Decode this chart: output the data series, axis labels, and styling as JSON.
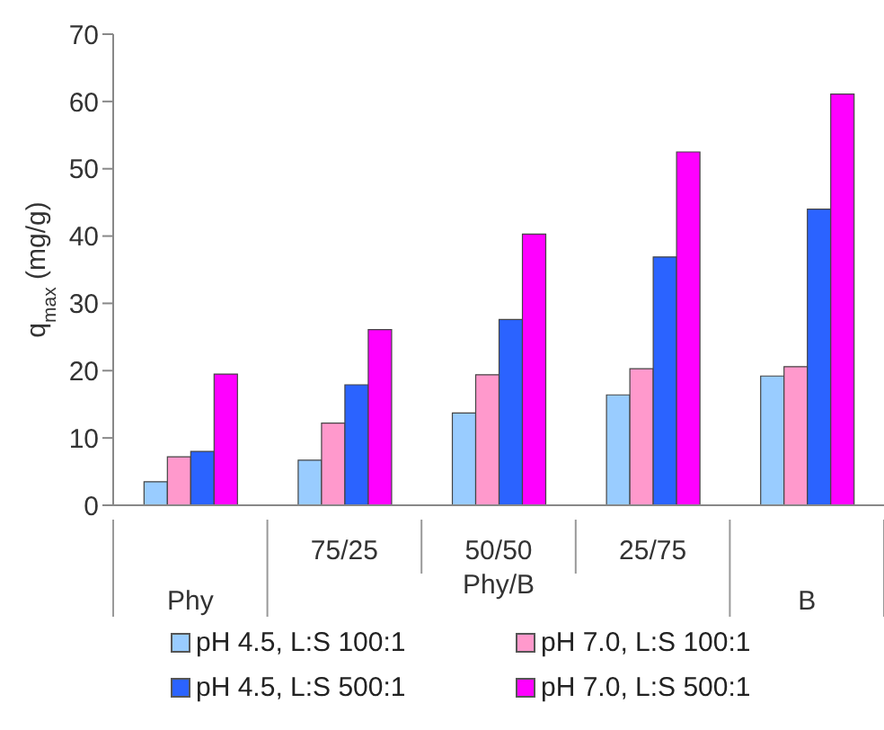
{
  "chart_data": {
    "type": "bar",
    "ylabel": "q$_{max}$ (mg/g)",
    "categories": [
      "Phy",
      "75/25",
      "50/50",
      "25/75",
      "B"
    ],
    "annotations": [
      "Phy/B"
    ],
    "series": [
      {
        "name": "pH 4.5, L:S 100:1",
        "color": "#99ccff",
        "values": [
          3.5,
          6.7,
          13.7,
          16.4,
          19.2
        ]
      },
      {
        "name": "pH 7.0, L:S 100:1",
        "color": "#ff99cc",
        "values": [
          7.2,
          12.2,
          19.4,
          20.3,
          20.6
        ]
      },
      {
        "name": "pH 4.5, L:S 500:1",
        "color": "#2b63ff",
        "values": [
          8.0,
          17.9,
          27.6,
          36.9,
          44.0
        ]
      },
      {
        "name": "pH 7.0, L:S 500:1",
        "color": "#ff00ff",
        "values": [
          19.5,
          26.1,
          40.3,
          52.5,
          61.1
        ]
      }
    ],
    "ylim": [
      0,
      70
    ],
    "yticks": [
      0,
      10,
      20,
      30,
      40,
      50,
      60,
      70
    ],
    "grid": false,
    "legend": "bottom"
  }
}
